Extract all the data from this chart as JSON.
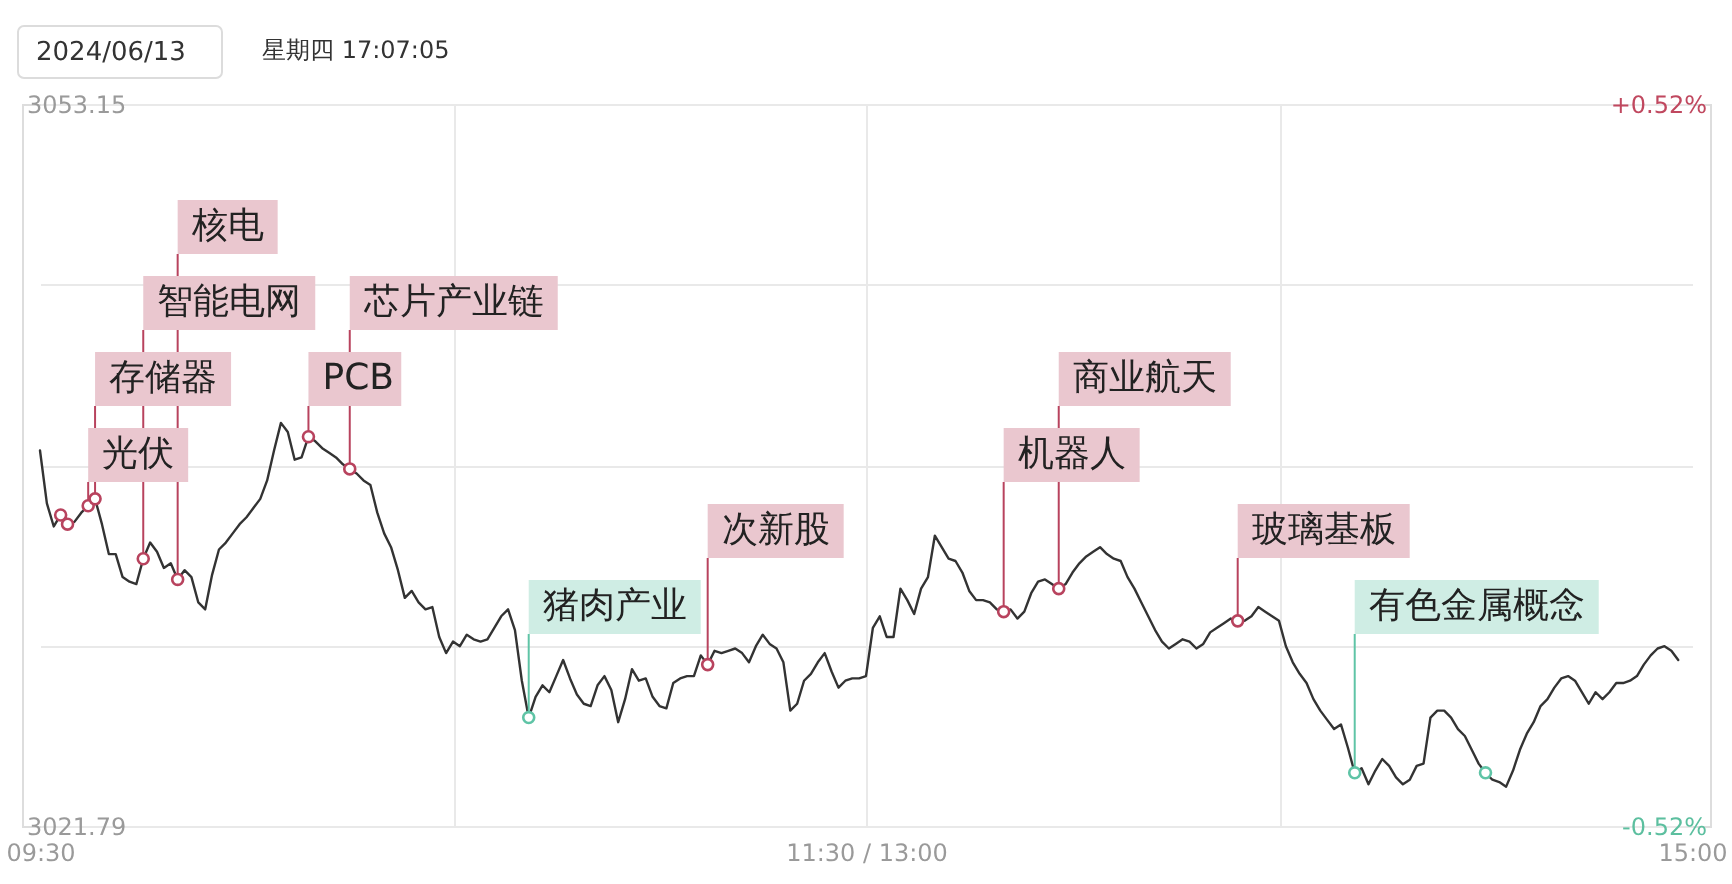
{
  "chart_data": {
    "type": "line",
    "annotations": [
      "2024/06/13",
      "星期四 17:07:05"
    ],
    "categories": [
      "09:30",
      null,
      null,
      null,
      null,
      null,
      null,
      null,
      null,
      null,
      null,
      null,
      null,
      null,
      null,
      null,
      null,
      null,
      null,
      null,
      null,
      null,
      null,
      null,
      null,
      null,
      null,
      null,
      null,
      null,
      null,
      null,
      null,
      null,
      null,
      null,
      null,
      null,
      null,
      null,
      null,
      null,
      null,
      null,
      null,
      null,
      null,
      null,
      null,
      null,
      null,
      null,
      null,
      null,
      null,
      null,
      null,
      null,
      null,
      null,
      null,
      null,
      null,
      null,
      null,
      null,
      null,
      null,
      null,
      null,
      null,
      null,
      null,
      null,
      null,
      null,
      null,
      null,
      null,
      null,
      null,
      null,
      null,
      null,
      null,
      null,
      null,
      null,
      null,
      null,
      null,
      null,
      null,
      null,
      null,
      null,
      null,
      null,
      null,
      null,
      null,
      null,
      null,
      null,
      null,
      null,
      null,
      null,
      null,
      null,
      null,
      null,
      null,
      null,
      null,
      null,
      null,
      null,
      null,
      null,
      "11:30 / 13:00",
      null,
      null,
      null,
      null,
      null,
      null,
      null,
      null,
      null,
      null,
      null,
      null,
      null,
      null,
      null,
      null,
      null,
      null,
      null,
      null,
      null,
      null,
      null,
      null,
      null,
      null,
      null,
      null,
      null,
      null,
      null,
      null,
      null,
      null,
      null,
      null,
      null,
      null,
      null,
      null,
      null,
      null,
      null,
      null,
      null,
      null,
      null,
      null,
      null,
      null,
      null,
      null,
      null,
      null,
      null,
      null,
      null,
      null,
      null,
      null,
      null,
      null,
      null,
      null,
      null,
      null,
      null,
      null,
      null,
      null,
      null,
      null,
      null,
      null,
      null,
      null,
      null,
      null,
      null,
      null,
      null,
      null,
      null,
      null,
      null,
      null,
      null,
      null,
      null,
      null,
      null,
      null,
      null,
      null,
      null,
      null,
      null,
      null,
      null,
      null,
      null,
      null,
      null,
      null,
      null,
      null,
      null,
      null,
      null,
      null,
      null,
      null,
      null,
      null,
      null,
      null,
      null,
      null,
      null,
      "15:00"
    ],
    "ylim": [
      3021.79,
      3053.15
    ],
    "yticks": [
      3021.79,
      {
        "value": 3029.63,
        "label": null
      },
      {
        "value": 3037.47,
        "label": null
      },
      {
        "value": 3045.31,
        "label": null
      },
      3053.15
    ],
    "y2lim": [
      -0.52,
      0.52
    ],
    "y2ticks": [
      {
        "value": -0.52,
        "label": "-0.52%"
      },
      {
        "value": 0.52,
        "label": "+0.52%"
      }
    ],
    "grid": true,
    "series": [
      {
        "color": "#333333",
        "values": [
          3038.1,
          3035.8,
          3034.8,
          3035.3,
          3034.9,
          3035.0,
          3035.4,
          3035.7,
          3036.0,
          3034.9,
          3033.6,
          3033.6,
          3032.6,
          3032.4,
          3032.3,
          3033.4,
          3034.1,
          3033.7,
          3033.0,
          3033.2,
          3032.5,
          3032.9,
          3032.6,
          3031.5,
          3031.2,
          3032.7,
          3033.8,
          3034.1,
          3034.5,
          3034.9,
          3035.2,
          3035.6,
          3036.0,
          3036.8,
          3038.1,
          3039.3,
          3038.9,
          3037.7,
          3037.8,
          3038.7,
          3038.5,
          3038.2,
          3038.0,
          3037.8,
          3037.5,
          3037.3,
          3037.1,
          3036.8,
          3036.6,
          3035.4,
          3034.5,
          3033.9,
          3032.9,
          3031.7,
          3032.0,
          3031.5,
          3031.2,
          3031.3,
          3030.0,
          3029.3,
          3029.8,
          3029.6,
          3030.1,
          3029.9,
          3029.8,
          3029.9,
          3030.4,
          3030.9,
          3031.2,
          3030.3,
          3028.1,
          3026.5,
          3027.4,
          3027.9,
          3027.6,
          3028.3,
          3029.0,
          3028.2,
          3027.5,
          3027.1,
          3027.0,
          3027.9,
          3028.3,
          3027.7,
          3026.3,
          3027.3,
          3028.6,
          3028.1,
          3028.2,
          3027.4,
          3027.0,
          3026.9,
          3028.0,
          3028.2,
          3028.3,
          3028.3,
          3029.2,
          3028.8,
          3029.4,
          3029.3,
          3029.4,
          3029.5,
          3029.3,
          3028.9,
          3029.6,
          3030.1,
          3029.7,
          3029.5,
          3028.9,
          3026.8,
          3027.1,
          3028.1,
          3028.4,
          3028.9,
          3029.3,
          3028.5,
          3027.8,
          3028.1,
          3028.2,
          3028.2,
          3028.3,
          3030.4,
          3030.9,
          3030.0,
          3030.0,
          3032.1,
          3031.6,
          3031.0,
          3032.1,
          3032.6,
          3034.4,
          3033.9,
          3033.4,
          3033.3,
          3032.8,
          3032.0,
          3031.6,
          3031.6,
          3031.5,
          3031.2,
          3031.1,
          3031.2,
          3030.8,
          3031.1,
          3031.9,
          3032.4,
          3032.5,
          3032.3,
          3032.1,
          3032.3,
          3032.8,
          3033.2,
          3033.5,
          3033.7,
          3033.9,
          3033.6,
          3033.4,
          3033.3,
          3032.6,
          3032.1,
          3031.5,
          3030.9,
          3030.3,
          3029.8,
          3029.5,
          3029.7,
          3029.9,
          3029.8,
          3029.5,
          3029.7,
          3030.2,
          3030.4,
          3030.6,
          3030.8,
          3030.7,
          3030.7,
          3030.9,
          3031.3,
          3031.1,
          3030.9,
          3030.7,
          3029.6,
          3028.9,
          3028.4,
          3028.0,
          3027.3,
          3026.8,
          3026.4,
          3026.0,
          3026.2,
          3025.2,
          3024.1,
          3024.3,
          3023.6,
          3024.2,
          3024.7,
          3024.4,
          3023.9,
          3023.6,
          3023.8,
          3024.4,
          3024.5,
          3026.5,
          3026.8,
          3026.8,
          3026.5,
          3026.0,
          3025.7,
          3025.1,
          3024.5,
          3024.1,
          3023.8,
          3023.7,
          3023.5,
          3024.2,
          3025.1,
          3025.8,
          3026.3,
          3027.0,
          3027.3,
          3027.8,
          3028.2,
          3028.3,
          3028.1,
          3027.6,
          3027.1,
          3027.6,
          3027.3,
          3027.6,
          3028.0,
          3028.0,
          3028.1,
          3028.3,
          3028.8,
          3029.2,
          3029.5,
          3029.6,
          3029.4,
          3029.0,
          null,
          null
        ]
      },
      {
        "type": "scatter",
        "color": "#b8435e",
        "marker": "circle",
        "values": [
          null,
          null,
          null,
          3035.3,
          3034.9,
          null,
          null,
          3035.7,
          3036.0,
          null,
          null,
          null,
          null,
          null,
          null,
          3033.4,
          null,
          null,
          null,
          null,
          3032.5,
          null,
          null,
          null,
          null,
          null,
          null,
          null,
          null,
          null,
          null,
          null,
          null,
          null,
          null,
          null,
          null,
          null,
          null,
          3038.7,
          null,
          null,
          null,
          null,
          null,
          3037.3,
          null,
          null,
          null,
          null,
          null,
          null,
          null,
          null,
          null,
          null,
          null,
          null,
          null,
          null,
          null,
          null,
          null,
          null,
          null,
          null,
          null,
          null,
          null,
          null,
          null,
          null,
          null,
          null,
          null,
          null,
          null,
          null,
          null,
          null,
          null,
          null,
          null,
          null,
          null,
          null,
          null,
          null,
          null,
          null,
          null,
          null,
          null,
          null,
          null,
          null,
          null,
          3028.8,
          null,
          null,
          null,
          null,
          null,
          null,
          null,
          null,
          null,
          null,
          null,
          null,
          null,
          null,
          null,
          null,
          null,
          null,
          null,
          null,
          null,
          null,
          null,
          null,
          null,
          null,
          null,
          null,
          null,
          null,
          null,
          null,
          null,
          null,
          null,
          null,
          null,
          null,
          null,
          null,
          null,
          null,
          3031.1,
          null,
          null,
          null,
          null,
          null,
          null,
          null,
          3032.1,
          null,
          null,
          null,
          null,
          null,
          null,
          null,
          null,
          null,
          null,
          null,
          null,
          null,
          null,
          null,
          null,
          null,
          null,
          null,
          null,
          null,
          null,
          null,
          null,
          null,
          3030.7,
          null,
          null,
          null,
          null,
          null,
          null,
          null,
          null,
          null,
          null,
          null,
          null,
          null,
          null,
          null,
          null,
          null,
          null,
          null,
          null,
          null,
          null,
          null,
          null,
          null,
          null,
          null,
          null,
          null,
          null,
          null,
          null,
          null,
          null,
          null,
          null,
          null,
          null,
          null,
          null,
          null,
          null,
          null,
          null,
          null,
          null,
          null,
          null,
          null,
          null,
          null,
          null,
          null,
          null,
          null,
          null,
          null,
          null,
          null,
          null,
          null,
          null,
          null,
          null,
          null,
          null
        ],
        "value_labels": [
          null,
          null,
          null,
          null,
          null,
          null,
          null,
          "光伏",
          "存储器",
          null,
          null,
          null,
          null,
          null,
          null,
          "智能电网",
          null,
          null,
          null,
          null,
          "核电",
          null,
          null,
          null,
          null,
          null,
          null,
          null,
          null,
          null,
          null,
          null,
          null,
          null,
          null,
          null,
          null,
          null,
          null,
          "PCB",
          null,
          null,
          null,
          null,
          null,
          "芯片产业链",
          null,
          null,
          null,
          null,
          null,
          null,
          null,
          null,
          null,
          null,
          null,
          null,
          null,
          null,
          null,
          null,
          null,
          null,
          null,
          null,
          null,
          null,
          null,
          null,
          null,
          null,
          null,
          null,
          null,
          null,
          null,
          null,
          null,
          null,
          null,
          null,
          null,
          null,
          null,
          null,
          null,
          null,
          null,
          null,
          null,
          null,
          null,
          null,
          null,
          null,
          null,
          "次新股",
          null,
          null,
          null,
          null,
          null,
          null,
          null,
          null,
          null,
          null,
          null,
          null,
          null,
          null,
          null,
          null,
          null,
          null,
          null,
          null,
          null,
          null,
          null,
          null,
          null,
          null,
          null,
          null,
          null,
          null,
          null,
          null,
          null,
          null,
          null,
          null,
          null,
          null,
          null,
          null,
          null,
          null,
          "机器人",
          null,
          null,
          null,
          null,
          null,
          null,
          null,
          "商业航天",
          null,
          null,
          null,
          null,
          null,
          null,
          null,
          null,
          null,
          null,
          null,
          null,
          null,
          null,
          null,
          null,
          null,
          null,
          null,
          null,
          null,
          null,
          null,
          null,
          null,
          "玻璃基板",
          null,
          null,
          null,
          null,
          null,
          null,
          null,
          null,
          null,
          null,
          null,
          null,
          null,
          null,
          null,
          null,
          null,
          null,
          null,
          null,
          null,
          null,
          null,
          null,
          null,
          null,
          null,
          null,
          null,
          null,
          null,
          null,
          null,
          null,
          null,
          null,
          null,
          null,
          null,
          null,
          null,
          null,
          null,
          null,
          null,
          null,
          null,
          null,
          null,
          null,
          null,
          null,
          null,
          null,
          null,
          null,
          null,
          null,
          null,
          null,
          null,
          null,
          null,
          null,
          null,
          null
        ]
      },
      {
        "type": "scatter",
        "color": "#5fc4a6",
        "marker": "circle",
        "values": [
          null,
          null,
          null,
          null,
          null,
          null,
          null,
          null,
          null,
          null,
          null,
          null,
          null,
          null,
          null,
          null,
          null,
          null,
          null,
          null,
          null,
          null,
          null,
          null,
          null,
          null,
          null,
          null,
          null,
          null,
          null,
          null,
          null,
          null,
          null,
          null,
          null,
          null,
          null,
          null,
          null,
          null,
          null,
          null,
          null,
          null,
          null,
          null,
          null,
          null,
          null,
          null,
          null,
          null,
          null,
          null,
          null,
          null,
          null,
          null,
          null,
          null,
          null,
          null,
          null,
          null,
          null,
          null,
          null,
          null,
          null,
          3026.5,
          null,
          null,
          null,
          null,
          null,
          null,
          null,
          null,
          null,
          null,
          null,
          null,
          null,
          null,
          null,
          null,
          null,
          null,
          null,
          null,
          null,
          null,
          null,
          null,
          null,
          null,
          null,
          null,
          null,
          null,
          null,
          null,
          null,
          null,
          null,
          null,
          null,
          null,
          null,
          null,
          null,
          null,
          null,
          null,
          null,
          null,
          null,
          null,
          null,
          null,
          null,
          null,
          null,
          null,
          null,
          null,
          null,
          null,
          null,
          null,
          null,
          null,
          null,
          null,
          null,
          null,
          null,
          null,
          null,
          null,
          null,
          null,
          null,
          null,
          null,
          null,
          null,
          null,
          null,
          null,
          null,
          null,
          null,
          null,
          null,
          null,
          null,
          null,
          null,
          null,
          null,
          null,
          null,
          null,
          null,
          null,
          null,
          null,
          null,
          null,
          null,
          null,
          null,
          null,
          null,
          null,
          null,
          null,
          null,
          null,
          null,
          null,
          null,
          null,
          null,
          null,
          null,
          null,
          null,
          3024.1,
          null,
          null,
          null,
          null,
          null,
          null,
          null,
          null,
          null,
          null,
          null,
          null,
          null,
          null,
          null,
          null,
          null,
          null,
          3024.1,
          null,
          null,
          null,
          null,
          null,
          null,
          null,
          null,
          null,
          null,
          null,
          null,
          null,
          null,
          null,
          null,
          null,
          null,
          null,
          null,
          null,
          null,
          null,
          null,
          null,
          null,
          null,
          null,
          null,
          null
        ],
        "value_labels": [
          null,
          null,
          null,
          null,
          null,
          null,
          null,
          null,
          null,
          null,
          null,
          null,
          null,
          null,
          null,
          null,
          null,
          null,
          null,
          null,
          null,
          null,
          null,
          null,
          null,
          null,
          null,
          null,
          null,
          null,
          null,
          null,
          null,
          null,
          null,
          null,
          null,
          null,
          null,
          null,
          null,
          null,
          null,
          null,
          null,
          null,
          null,
          null,
          null,
          null,
          null,
          null,
          null,
          null,
          null,
          null,
          null,
          null,
          null,
          null,
          null,
          null,
          null,
          null,
          null,
          null,
          null,
          null,
          null,
          null,
          null,
          "猪肉产业",
          null,
          null,
          null,
          null,
          null,
          null,
          null,
          null,
          null,
          null,
          null,
          null,
          null,
          null,
          null,
          null,
          null,
          null,
          null,
          null,
          null,
          null,
          null,
          null,
          null,
          null,
          null,
          null,
          null,
          null,
          null,
          null,
          null,
          null,
          null,
          null,
          null,
          null,
          null,
          null,
          null,
          null,
          null,
          null,
          null,
          null,
          null,
          null,
          null,
          null,
          null,
          null,
          null,
          null,
          null,
          null,
          null,
          null,
          null,
          null,
          null,
          null,
          null,
          null,
          null,
          null,
          null,
          null,
          null,
          null,
          null,
          null,
          null,
          null,
          null,
          null,
          null,
          null,
          null,
          null,
          null,
          null,
          null,
          null,
          null,
          null,
          null,
          null,
          null,
          null,
          null,
          null,
          null,
          null,
          null,
          null,
          null,
          null,
          null,
          null,
          null,
          null,
          null,
          null,
          null,
          null,
          null,
          null,
          null,
          null,
          null,
          null,
          null,
          null,
          null,
          null,
          null,
          null,
          null,
          "有色金属概念",
          null,
          null,
          null,
          null,
          null,
          null,
          null,
          null,
          null,
          null,
          null,
          null,
          null,
          null,
          null,
          null,
          null,
          null,
          null,
          null,
          null,
          null,
          null,
          null,
          null,
          null,
          null,
          null,
          null,
          null,
          null,
          null,
          null,
          null,
          null,
          null,
          null,
          null,
          null,
          null,
          null,
          null,
          null,
          null,
          null,
          null,
          null,
          null,
          null
        ]
      }
    ]
  }
}
